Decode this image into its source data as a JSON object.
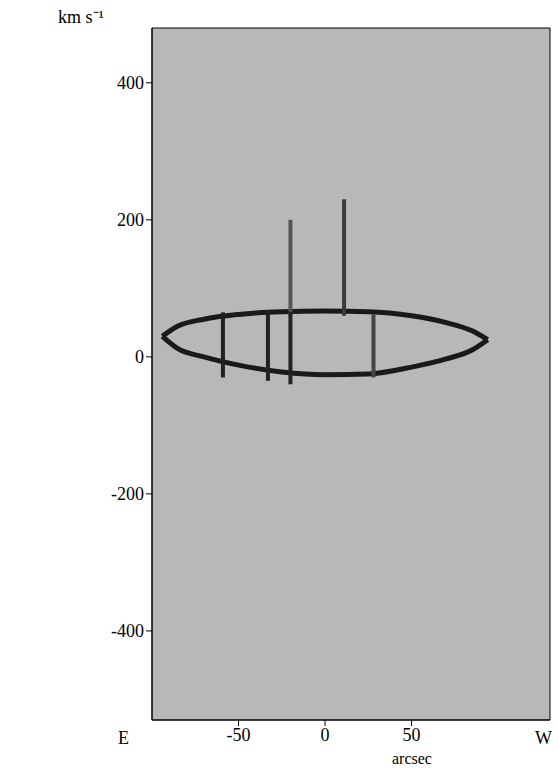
{
  "chart_data": {
    "type": "line",
    "xlabel": "arcsec",
    "ylabel": "km s⁻¹",
    "annotations": [
      "E",
      "W"
    ],
    "xlim": [
      -100,
      130
    ],
    "xticks": [
      -50,
      0,
      50
    ],
    "ylim": [
      -530,
      480
    ],
    "yticks": [
      -400,
      -200,
      0,
      200,
      400
    ],
    "grid": false,
    "series": [
      {
        "x": [
          -94,
          -85,
          -70,
          -50,
          -25,
          0,
          25,
          50,
          70,
          85,
          94
        ],
        "values": [
          30,
          45,
          55,
          62,
          66,
          67,
          66,
          60,
          50,
          38,
          25
        ],
        "color": "#1a1a1a"
      },
      {
        "x": [
          -94,
          -85,
          -70,
          -50,
          -25,
          0,
          25,
          50,
          70,
          85,
          94
        ],
        "values": [
          30,
          12,
          0,
          -12,
          -22,
          -26,
          -25,
          -15,
          -3,
          10,
          25
        ],
        "color": "#1a1a1a"
      },
      {
        "x": [
          11,
          11
        ],
        "values": [
          60,
          230
        ],
        "color": "#3a3a3a"
      },
      {
        "x": [
          -20,
          -20
        ],
        "values": [
          60,
          200
        ],
        "color": "#555555"
      },
      {
        "x": [
          -59,
          -59
        ],
        "values": [
          -30,
          65
        ],
        "color": "#222222"
      },
      {
        "x": [
          -33,
          -33
        ],
        "values": [
          -35,
          68
        ],
        "color": "#222222"
      },
      {
        "x": [
          -20,
          -20
        ],
        "values": [
          -40,
          66
        ],
        "color": "#222222"
      },
      {
        "x": [
          28,
          28
        ],
        "values": [
          -30,
          62
        ],
        "color": "#444444"
      }
    ]
  }
}
